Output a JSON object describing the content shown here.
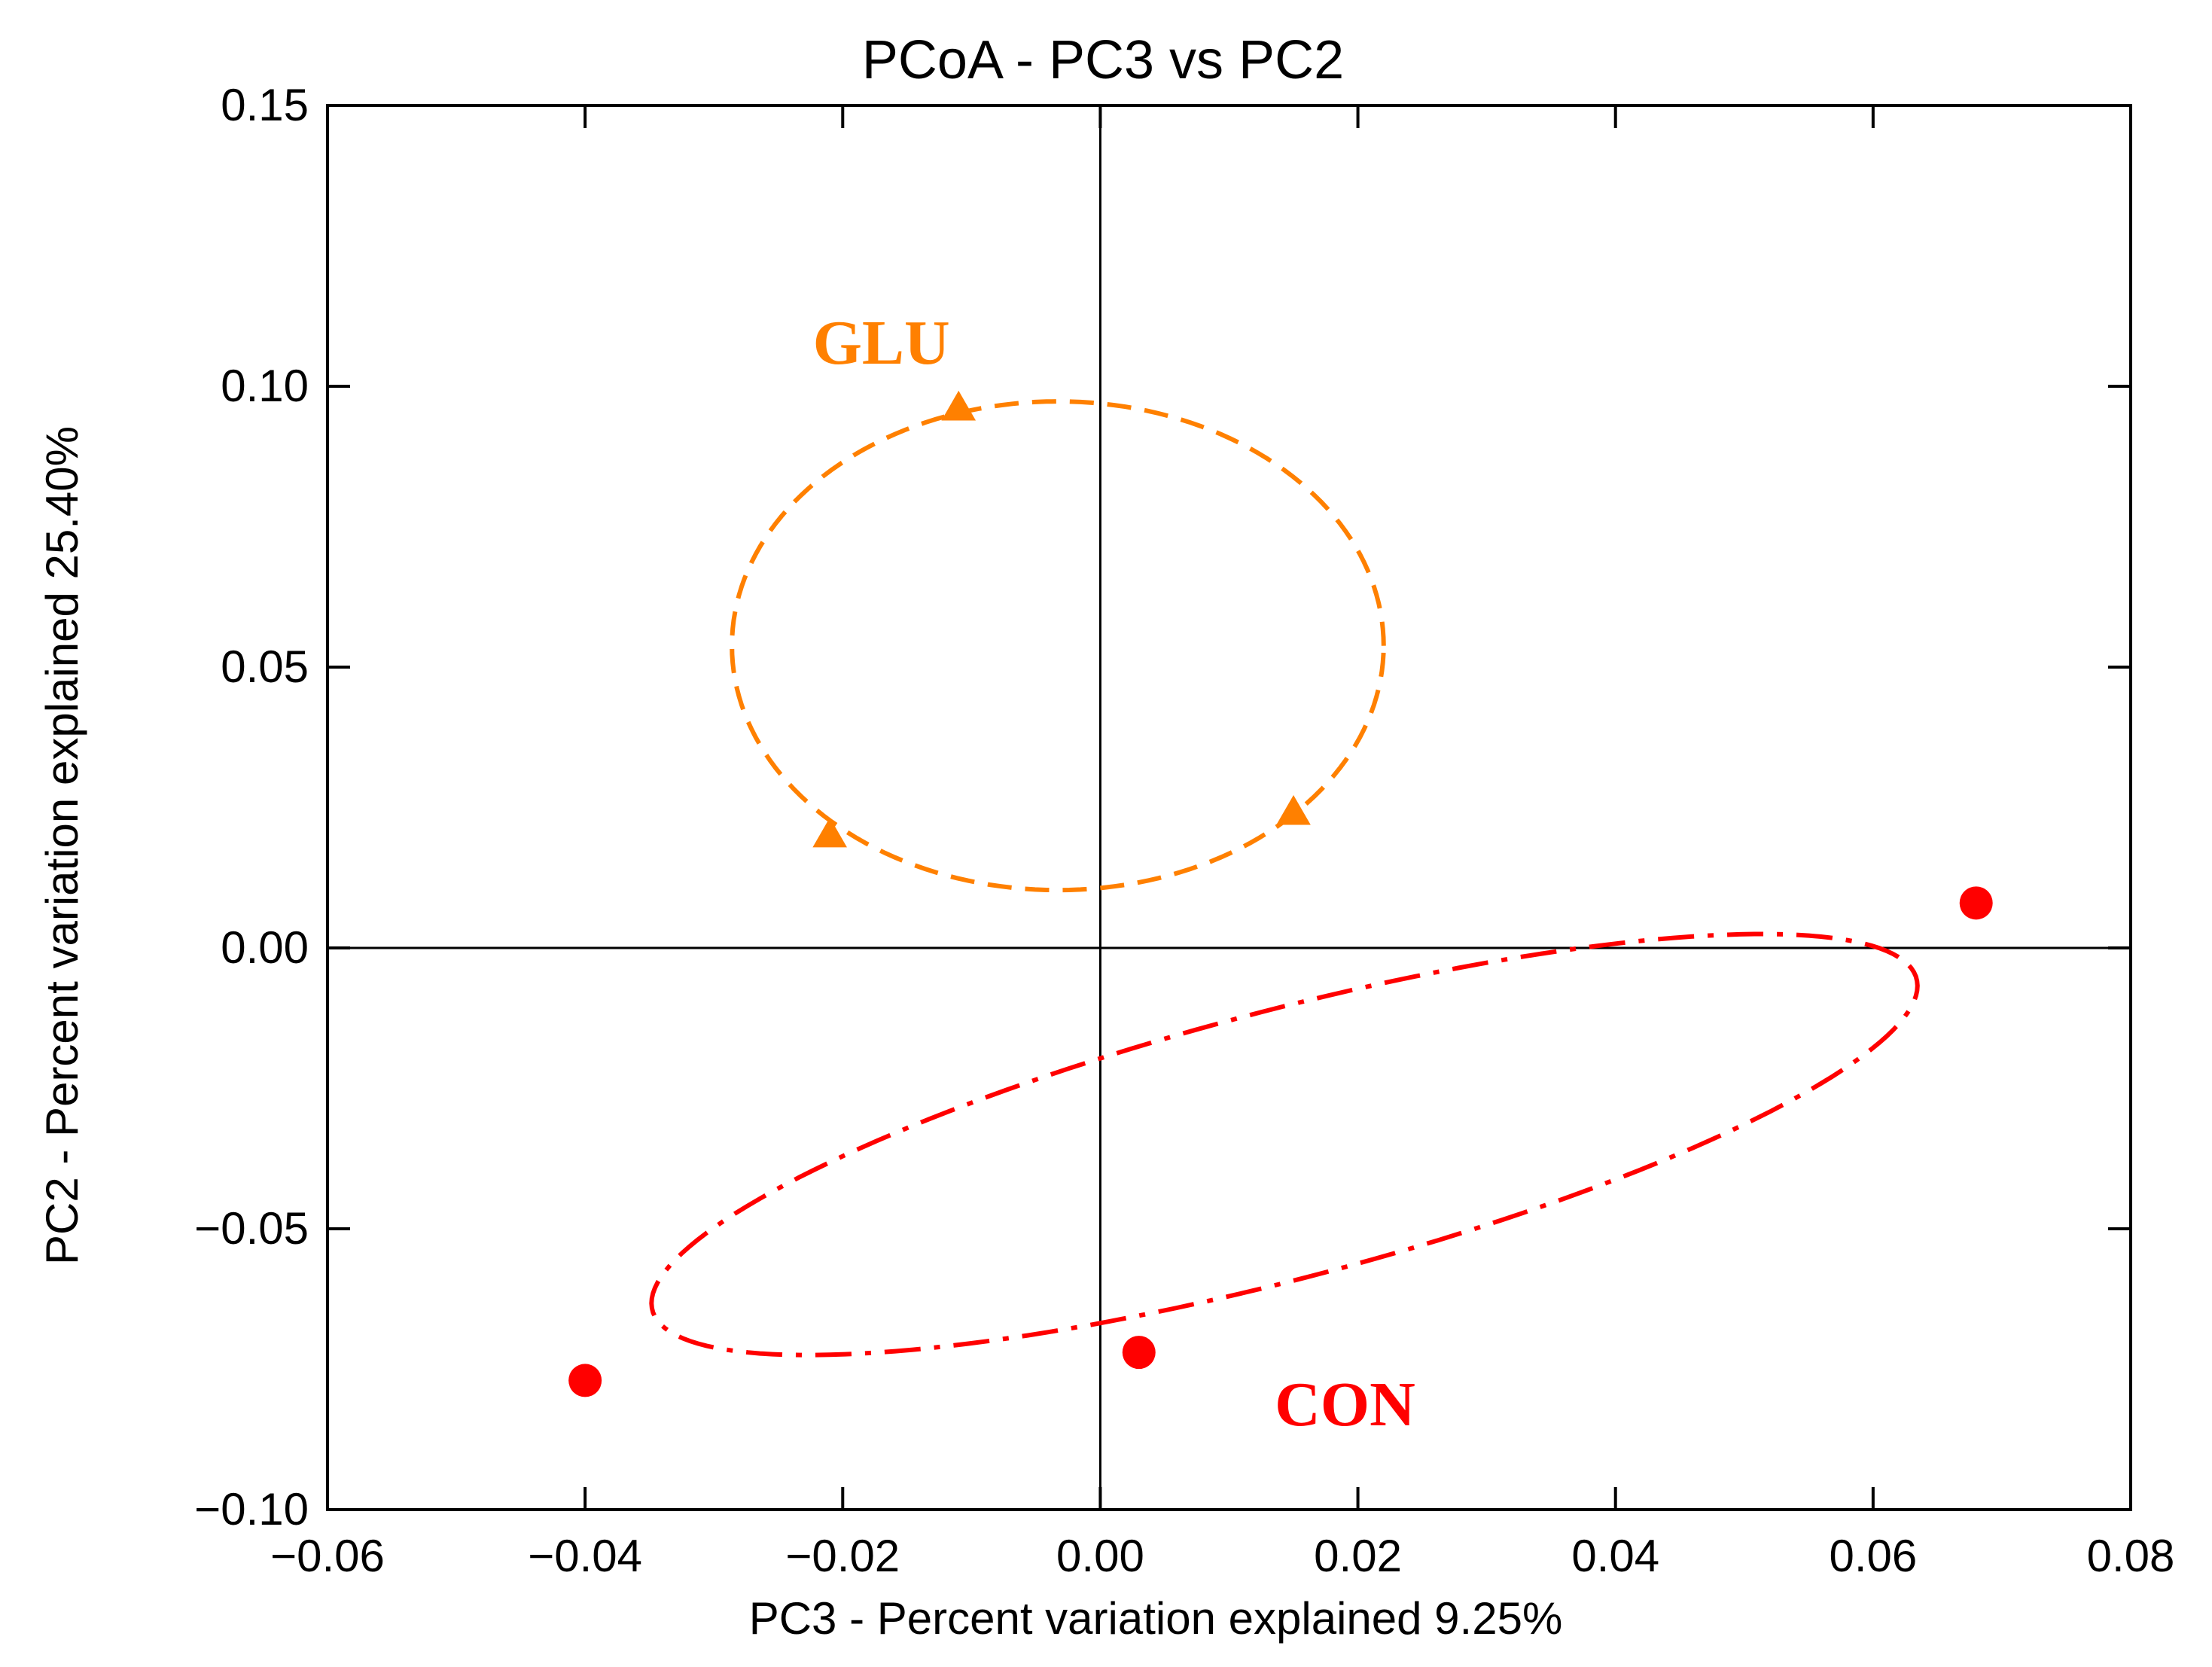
{
  "chart_data": {
    "type": "scatter",
    "title": "PCoA - PC3 vs PC2",
    "xlabel": "PC3 - Percent variation explained 9.25%",
    "ylabel": "PC2 - Percent variation explained 25.40%",
    "xlim": [
      -0.06,
      0.08
    ],
    "ylim": [
      -0.1,
      0.15
    ],
    "x_ticks": [
      -0.06,
      -0.04,
      -0.02,
      0.0,
      0.02,
      0.04,
      0.06,
      0.08
    ],
    "x_tick_labels": [
      "−0.06",
      "−0.04",
      "−0.02",
      "0.00",
      "0.02",
      "0.04",
      "0.06",
      "0.08"
    ],
    "y_ticks": [
      -0.1,
      -0.05,
      0.0,
      0.05,
      0.1,
      0.15
    ],
    "y_tick_labels": [
      "−0.10",
      "−0.05",
      "0.00",
      "0.05",
      "0.10",
      "0.15"
    ],
    "reference_lines": {
      "x": 0,
      "y": 0
    },
    "series": [
      {
        "name": "GLU",
        "color": "#ff8000",
        "marker": "triangle",
        "points": [
          {
            "x": -0.011,
            "y": 0.096
          },
          {
            "x": -0.021,
            "y": 0.02
          },
          {
            "x": 0.015,
            "y": 0.024
          }
        ],
        "ellipse": {
          "cx": -0.0033,
          "cy": 0.0538,
          "rx": 0.0253,
          "ry": 0.0435,
          "angle_deg": 0,
          "style": "dashed"
        }
      },
      {
        "name": "CON",
        "color": "#ff0000",
        "marker": "circle",
        "points": [
          {
            "x": 0.068,
            "y": 0.008
          },
          {
            "x": 0.003,
            "y": -0.072
          },
          {
            "x": -0.04,
            "y": -0.077
          }
        ],
        "ellipse": {
          "cx": 0.0143,
          "cy": -0.035,
          "rx": 0.0582,
          "ry": 0.0208,
          "angle_deg": 35,
          "style": "dash-dot"
        }
      }
    ],
    "annotations": [
      {
        "text": "GLU",
        "x": -0.017,
        "y": 0.104,
        "color": "#ff8000"
      },
      {
        "text": "CON",
        "x": 0.019,
        "y": -0.085,
        "color": "#ff0000"
      }
    ]
  }
}
